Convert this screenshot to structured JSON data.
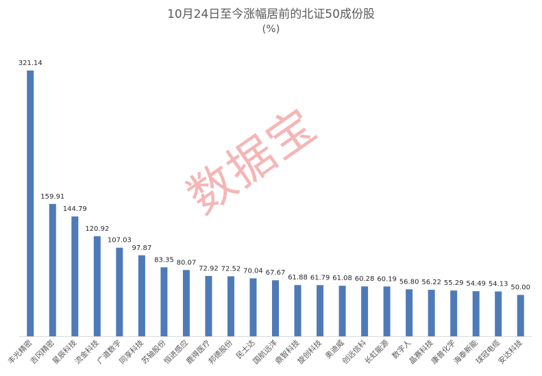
{
  "title": "10月24日至今涨幅居前的北证50成份股",
  "subtitle": "(%)",
  "watermark": "数据宝",
  "colors": {
    "bar": "#4e7ab8",
    "text": "#595959",
    "axis": "#d9d9d9",
    "watermark": "#f08080"
  },
  "chart_data": {
    "type": "bar",
    "title": "10月24日至今涨幅居前的北证50成份股",
    "subtitle": "(%)",
    "xlabel": "",
    "ylabel": "",
    "ylim": [
      0,
      330
    ],
    "grid": false,
    "categories": [
      "丰光精密",
      "吉冈精密",
      "星辰科技",
      "流金科技",
      "广道数字",
      "同享科技",
      "苏轴股份",
      "恒进感应",
      "鹿得医疗",
      "邦德股份",
      "民士达",
      "国航远洋",
      "鼎智科技",
      "旋创科技",
      "奥迪威",
      "创远信科",
      "长虹能源",
      "数字人",
      "晶赛科技",
      "康普化学",
      "海泰新能",
      "球冠电缆",
      "安达科技"
    ],
    "values": [
      321.14,
      159.91,
      144.79,
      120.92,
      107.03,
      97.87,
      83.35,
      80.07,
      72.92,
      72.52,
      70.04,
      67.67,
      61.88,
      61.79,
      61.08,
      60.28,
      60.19,
      56.8,
      56.22,
      55.29,
      54.49,
      54.13,
      50.0
    ],
    "value_labels": [
      "321.14",
      "159.91",
      "144.79",
      "120.92",
      "107.03",
      "97.87",
      "83.35",
      "80.07",
      "72.92",
      "72.52",
      "70.04",
      "67.67",
      "61.88",
      "61.79",
      "61.08",
      "60.28",
      "60.19",
      "56.80",
      "56.22",
      "55.29",
      "54.49",
      "54.13",
      "50.00"
    ]
  }
}
